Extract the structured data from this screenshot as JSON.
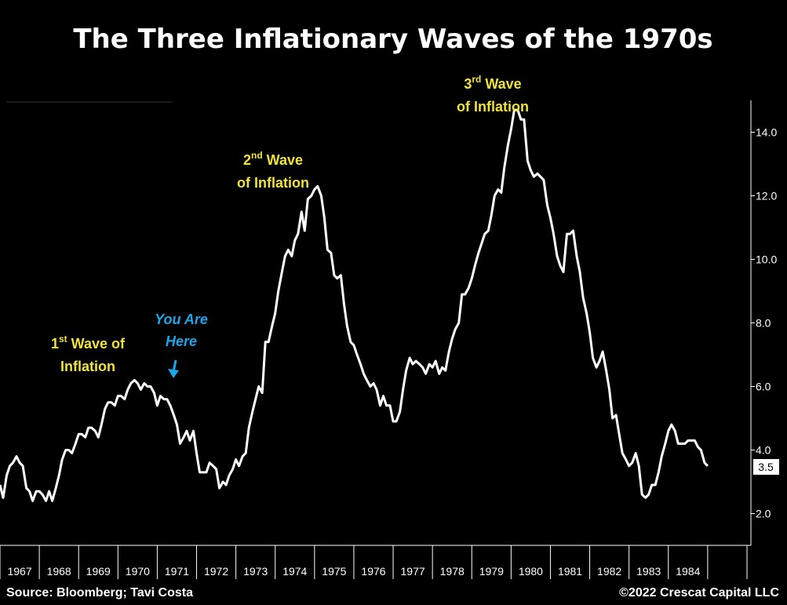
{
  "chart_data": {
    "type": "line",
    "title": "The Three Inflationary Waves of the 1970s",
    "xlabel": "",
    "ylabel": "",
    "x_range": [
      1966.0,
      1985.1
    ],
    "ylim": [
      1.0,
      15.0
    ],
    "y_ticks": [
      2.0,
      4.0,
      6.0,
      8.0,
      10.0,
      12.0,
      14.0
    ],
    "y_tick_labels": [
      "2.0",
      "4.0",
      "6.0",
      "8.0",
      "10.0",
      "12.0",
      "14.0"
    ],
    "x_tick_labels": [
      "1967",
      "1968",
      "1969",
      "1970",
      "1971",
      "1972",
      "1973",
      "1974",
      "1975",
      "1976",
      "1977",
      "1978",
      "1979",
      "1980",
      "1981",
      "1982",
      "1983",
      "1984"
    ],
    "grid": false,
    "last_value_label": "3.5",
    "series": [
      {
        "color": "#ffffff",
        "points": [
          [
            1966.0,
            2.9
          ],
          [
            1966.08,
            2.5
          ],
          [
            1966.17,
            3.2
          ],
          [
            1966.25,
            3.5
          ],
          [
            1966.33,
            3.6
          ],
          [
            1966.42,
            3.8
          ],
          [
            1966.5,
            3.6
          ],
          [
            1966.58,
            3.5
          ],
          [
            1966.67,
            2.8
          ],
          [
            1966.75,
            2.7
          ],
          [
            1966.83,
            2.4
          ],
          [
            1966.92,
            2.7
          ],
          [
            1967.0,
            2.7
          ],
          [
            1967.08,
            2.6
          ],
          [
            1967.17,
            2.4
          ],
          [
            1967.25,
            2.7
          ],
          [
            1967.33,
            2.4
          ],
          [
            1967.42,
            2.8
          ],
          [
            1967.5,
            3.2
          ],
          [
            1967.58,
            3.7
          ],
          [
            1967.67,
            4.0
          ],
          [
            1967.75,
            4.0
          ],
          [
            1967.83,
            3.9
          ],
          [
            1967.92,
            4.2
          ],
          [
            1968.0,
            4.5
          ],
          [
            1968.08,
            4.5
          ],
          [
            1968.17,
            4.4
          ],
          [
            1968.25,
            4.7
          ],
          [
            1968.33,
            4.7
          ],
          [
            1968.42,
            4.6
          ],
          [
            1968.5,
            4.4
          ],
          [
            1968.58,
            4.8
          ],
          [
            1968.67,
            5.3
          ],
          [
            1968.75,
            5.5
          ],
          [
            1968.83,
            5.5
          ],
          [
            1968.92,
            5.4
          ],
          [
            1969.0,
            5.7
          ],
          [
            1969.08,
            5.7
          ],
          [
            1969.17,
            5.6
          ],
          [
            1969.25,
            5.9
          ],
          [
            1969.33,
            6.1
          ],
          [
            1969.42,
            6.2
          ],
          [
            1969.5,
            6.1
          ],
          [
            1969.58,
            5.9
          ],
          [
            1969.67,
            6.1
          ],
          [
            1969.75,
            6.0
          ],
          [
            1969.83,
            6.0
          ],
          [
            1969.92,
            5.8
          ],
          [
            1970.0,
            5.4
          ],
          [
            1970.08,
            5.7
          ],
          [
            1970.17,
            5.6
          ],
          [
            1970.25,
            5.6
          ],
          [
            1970.33,
            5.4
          ],
          [
            1970.42,
            5.1
          ],
          [
            1970.5,
            4.8
          ],
          [
            1970.58,
            4.2
          ],
          [
            1970.67,
            4.4
          ],
          [
            1970.75,
            4.6
          ],
          [
            1970.83,
            4.3
          ],
          [
            1970.92,
            4.6
          ],
          [
            1971.0,
            3.9
          ],
          [
            1971.08,
            3.3
          ],
          [
            1971.17,
            3.3
          ],
          [
            1971.25,
            3.3
          ],
          [
            1971.33,
            3.6
          ],
          [
            1971.42,
            3.5
          ],
          [
            1971.5,
            3.4
          ],
          [
            1971.58,
            2.8
          ],
          [
            1971.67,
            3.0
          ],
          [
            1971.75,
            2.9
          ],
          [
            1971.83,
            3.2
          ],
          [
            1971.92,
            3.4
          ],
          [
            1972.0,
            3.7
          ],
          [
            1972.08,
            3.5
          ],
          [
            1972.17,
            3.8
          ],
          [
            1972.25,
            3.9
          ],
          [
            1972.33,
            4.7
          ],
          [
            1972.42,
            5.2
          ],
          [
            1972.5,
            5.6
          ],
          [
            1972.58,
            6.0
          ],
          [
            1972.67,
            5.8
          ],
          [
            1972.75,
            7.4
          ],
          [
            1972.83,
            7.4
          ],
          [
            1972.92,
            7.9
          ],
          [
            1973.0,
            8.3
          ],
          [
            1973.08,
            9.0
          ],
          [
            1973.17,
            9.6
          ],
          [
            1973.25,
            10.1
          ],
          [
            1973.33,
            10.3
          ],
          [
            1973.42,
            10.1
          ],
          [
            1973.5,
            10.6
          ],
          [
            1973.58,
            10.8
          ],
          [
            1973.67,
            11.5
          ],
          [
            1973.75,
            10.9
          ],
          [
            1973.83,
            11.9
          ],
          [
            1973.92,
            12.0
          ],
          [
            1974.0,
            12.2
          ],
          [
            1974.08,
            12.3
          ],
          [
            1974.17,
            12.0
          ],
          [
            1974.25,
            11.3
          ],
          [
            1974.33,
            10.3
          ],
          [
            1974.42,
            10.2
          ],
          [
            1974.5,
            9.5
          ],
          [
            1974.58,
            9.4
          ],
          [
            1974.67,
            9.5
          ],
          [
            1974.75,
            8.6
          ],
          [
            1974.83,
            7.9
          ],
          [
            1974.92,
            7.4
          ],
          [
            1975.0,
            7.3
          ],
          [
            1975.08,
            7.0
          ],
          [
            1975.17,
            6.7
          ],
          [
            1975.25,
            6.4
          ],
          [
            1975.33,
            6.2
          ],
          [
            1975.42,
            6.0
          ],
          [
            1975.5,
            6.1
          ],
          [
            1975.58,
            5.9
          ],
          [
            1975.67,
            5.4
          ],
          [
            1975.75,
            5.7
          ],
          [
            1975.83,
            5.4
          ],
          [
            1975.92,
            5.4
          ],
          [
            1976.0,
            4.9
          ],
          [
            1976.08,
            4.9
          ],
          [
            1976.17,
            5.2
          ],
          [
            1976.25,
            5.9
          ],
          [
            1976.33,
            6.5
          ],
          [
            1976.42,
            6.9
          ],
          [
            1976.5,
            6.7
          ],
          [
            1976.58,
            6.8
          ],
          [
            1976.67,
            6.7
          ],
          [
            1976.75,
            6.6
          ],
          [
            1976.83,
            6.4
          ],
          [
            1976.92,
            6.7
          ],
          [
            1977.0,
            6.6
          ],
          [
            1977.08,
            6.8
          ],
          [
            1977.17,
            6.4
          ],
          [
            1977.25,
            6.6
          ],
          [
            1977.33,
            6.5
          ],
          [
            1977.42,
            7.1
          ],
          [
            1977.5,
            7.5
          ],
          [
            1977.58,
            7.8
          ],
          [
            1977.67,
            8.0
          ],
          [
            1977.75,
            8.9
          ],
          [
            1977.83,
            8.9
          ],
          [
            1977.92,
            9.1
          ],
          [
            1978.0,
            9.4
          ],
          [
            1978.08,
            9.8
          ],
          [
            1978.17,
            10.2
          ],
          [
            1978.25,
            10.5
          ],
          [
            1978.33,
            10.8
          ],
          [
            1978.42,
            10.9
          ],
          [
            1978.5,
            11.4
          ],
          [
            1978.58,
            12.0
          ],
          [
            1978.67,
            12.2
          ],
          [
            1978.75,
            12.1
          ],
          [
            1978.83,
            12.9
          ],
          [
            1978.92,
            13.6
          ],
          [
            1979.0,
            14.1
          ],
          [
            1979.08,
            14.7
          ],
          [
            1979.17,
            14.7
          ],
          [
            1979.25,
            14.4
          ],
          [
            1979.33,
            14.4
          ],
          [
            1979.42,
            13.1
          ],
          [
            1979.5,
            12.8
          ],
          [
            1979.58,
            12.6
          ],
          [
            1979.67,
            12.7
          ],
          [
            1979.75,
            12.6
          ],
          [
            1979.83,
            12.5
          ],
          [
            1979.92,
            11.7
          ],
          [
            1980.0,
            11.3
          ],
          [
            1980.08,
            10.8
          ],
          [
            1980.17,
            10.1
          ],
          [
            1980.25,
            9.8
          ],
          [
            1980.33,
            9.6
          ],
          [
            1980.42,
            10.8
          ],
          [
            1980.5,
            10.8
          ],
          [
            1980.58,
            10.9
          ],
          [
            1980.67,
            10.1
          ],
          [
            1980.75,
            9.6
          ],
          [
            1980.83,
            8.8
          ],
          [
            1980.92,
            8.3
          ],
          [
            1981.0,
            7.7
          ],
          [
            1981.08,
            6.9
          ],
          [
            1981.17,
            6.6
          ],
          [
            1981.25,
            6.8
          ],
          [
            1981.33,
            7.1
          ],
          [
            1981.42,
            6.5
          ],
          [
            1981.5,
            5.9
          ],
          [
            1981.58,
            5.0
          ],
          [
            1981.67,
            5.1
          ],
          [
            1981.75,
            4.5
          ],
          [
            1981.83,
            3.9
          ],
          [
            1981.92,
            3.7
          ],
          [
            1982.0,
            3.5
          ],
          [
            1982.08,
            3.6
          ],
          [
            1982.17,
            3.9
          ],
          [
            1982.25,
            3.5
          ],
          [
            1982.33,
            2.6
          ],
          [
            1982.42,
            2.5
          ],
          [
            1982.5,
            2.6
          ],
          [
            1982.58,
            2.9
          ],
          [
            1982.67,
            2.9
          ],
          [
            1982.75,
            3.3
          ],
          [
            1982.83,
            3.8
          ],
          [
            1982.92,
            4.2
          ],
          [
            1983.0,
            4.6
          ],
          [
            1983.08,
            4.8
          ],
          [
            1983.17,
            4.6
          ],
          [
            1983.25,
            4.2
          ],
          [
            1983.33,
            4.2
          ],
          [
            1983.42,
            4.2
          ],
          [
            1983.5,
            4.3
          ],
          [
            1983.58,
            4.3
          ],
          [
            1983.67,
            4.3
          ],
          [
            1983.75,
            4.1
          ],
          [
            1983.83,
            4.0
          ],
          [
            1983.92,
            3.6
          ],
          [
            1984.0,
            3.5
          ]
        ]
      }
    ],
    "annotations": {
      "wave1": {
        "line1": "1",
        "line1_sup": "st",
        "line1_rest": " Wave of",
        "line2": "Inflation"
      },
      "wave2": {
        "line1": "2",
        "line1_sup": "nd",
        "line1_rest": " Wave",
        "line2": "of Inflation"
      },
      "wave3": {
        "line1": "3",
        "line1_sup": "rd",
        "line1_rest": " Wave",
        "line2": "of Inflation"
      },
      "here": {
        "line1": "You Are",
        "line2": "Here"
      }
    },
    "source": "Source: Bloomberg; Tavi Costa",
    "copyright": "©2022 Crescat Capital LLC"
  },
  "colors": {
    "background": "#000000",
    "line": "#ffffff",
    "annotation": "#f2e33a",
    "marker": "#1aa6e8"
  }
}
